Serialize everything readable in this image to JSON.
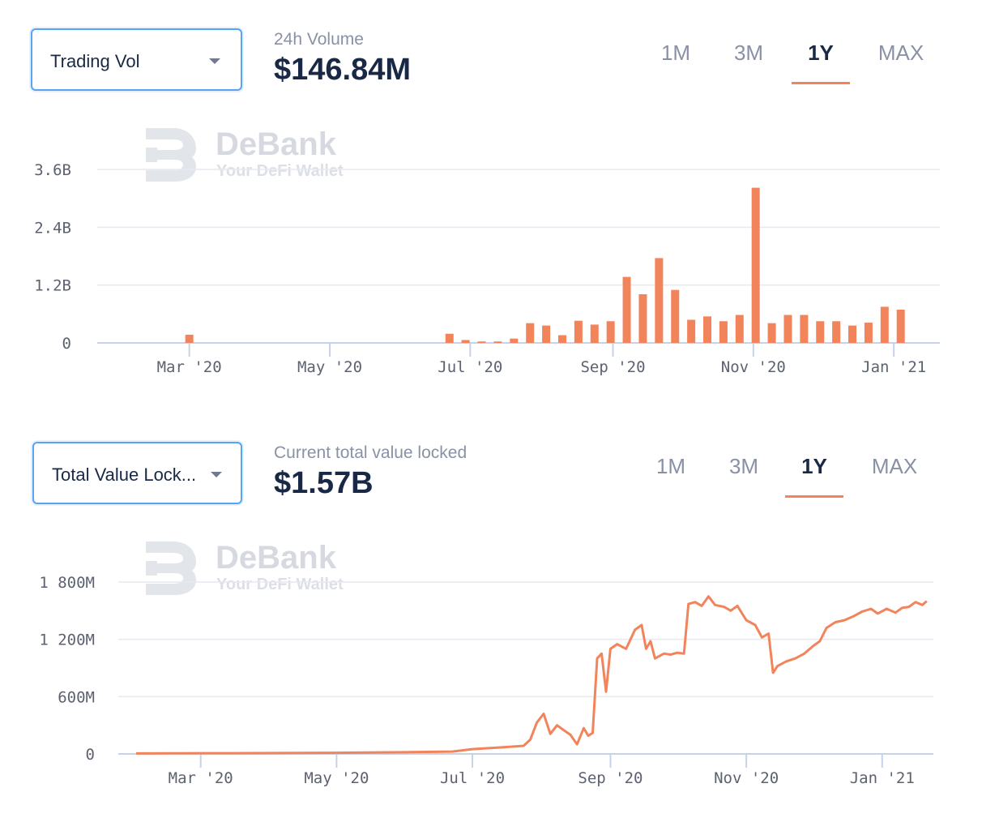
{
  "colors": {
    "accent": "#f2845c",
    "text": "#192945",
    "muted": "#8a91a4",
    "border": "#5aa3f0"
  },
  "watermark": {
    "name": "DeBank",
    "tagline": "Your DeFi Wallet"
  },
  "volume_panel": {
    "selector_label": "Trading Vol",
    "stat_label": "24h Volume",
    "stat_value": "$146.84M",
    "ranges": [
      "1M",
      "3M",
      "1Y",
      "MAX"
    ],
    "active_range": "1Y"
  },
  "tvl_panel": {
    "selector_label": "Total Value Lock...",
    "stat_label": "Current total value locked",
    "stat_value": "$1.57B",
    "ranges": [
      "1M",
      "3M",
      "1Y",
      "MAX"
    ],
    "active_range": "1Y"
  },
  "chart_data": [
    {
      "type": "bar",
      "title": "Trading Vol",
      "x_start": "2020-01-21",
      "x_end": "2021-01-21",
      "x_tick_labels": [
        "Mar '20",
        "May '20",
        "Jul '20",
        "Sep '20",
        "Nov '20",
        "Jan '21"
      ],
      "x_tick_dates": [
        "2020-03-01",
        "2020-05-01",
        "2020-07-01",
        "2020-09-01",
        "2020-11-01",
        "2021-01-01"
      ],
      "y_ticks": [
        0,
        1.2,
        2.4,
        3.6
      ],
      "y_tick_labels": [
        "0",
        "1.2B",
        "2.4B",
        "3.6B"
      ],
      "ylim": [
        0,
        3.6
      ],
      "unit": "B",
      "bars": [
        {
          "date": "2020-03-01",
          "value": 0.17
        },
        {
          "date": "2020-06-22",
          "value": 0.19
        },
        {
          "date": "2020-06-29",
          "value": 0.06
        },
        {
          "date": "2020-07-06",
          "value": 0.03
        },
        {
          "date": "2020-07-13",
          "value": 0.03
        },
        {
          "date": "2020-07-20",
          "value": 0.09
        },
        {
          "date": "2020-07-27",
          "value": 0.41
        },
        {
          "date": "2020-08-03",
          "value": 0.36
        },
        {
          "date": "2020-08-10",
          "value": 0.16
        },
        {
          "date": "2020-08-17",
          "value": 0.46
        },
        {
          "date": "2020-08-24",
          "value": 0.38
        },
        {
          "date": "2020-08-31",
          "value": 0.45
        },
        {
          "date": "2020-09-07",
          "value": 1.37
        },
        {
          "date": "2020-09-14",
          "value": 1.01
        },
        {
          "date": "2020-09-21",
          "value": 1.76
        },
        {
          "date": "2020-09-28",
          "value": 1.1
        },
        {
          "date": "2020-10-05",
          "value": 0.48
        },
        {
          "date": "2020-10-12",
          "value": 0.55
        },
        {
          "date": "2020-10-19",
          "value": 0.45
        },
        {
          "date": "2020-10-26",
          "value": 0.58
        },
        {
          "date": "2020-11-02",
          "value": 3.22
        },
        {
          "date": "2020-11-09",
          "value": 0.41
        },
        {
          "date": "2020-11-16",
          "value": 0.58
        },
        {
          "date": "2020-11-23",
          "value": 0.58
        },
        {
          "date": "2020-11-30",
          "value": 0.45
        },
        {
          "date": "2020-12-07",
          "value": 0.45
        },
        {
          "date": "2020-12-14",
          "value": 0.36
        },
        {
          "date": "2020-12-21",
          "value": 0.42
        },
        {
          "date": "2020-12-28",
          "value": 0.75
        },
        {
          "date": "2021-01-04",
          "value": 0.69
        }
      ]
    },
    {
      "type": "line",
      "title": "Total Value Locked",
      "x_start": "2020-01-24",
      "x_end": "2021-01-24",
      "x_tick_labels": [
        "Mar '20",
        "May '20",
        "Jul '20",
        "Sep '20",
        "Nov '20",
        "Jan '21"
      ],
      "x_tick_dates": [
        "2020-03-01",
        "2020-05-01",
        "2020-07-01",
        "2020-09-01",
        "2020-11-01",
        "2021-01-01"
      ],
      "y_ticks": [
        0,
        600,
        1200,
        1800
      ],
      "y_tick_labels": [
        "0",
        "600M",
        "1 200M",
        "1 800M"
      ],
      "ylim": [
        0,
        1800
      ],
      "unit": "M",
      "points": [
        [
          "2020-02-01",
          5
        ],
        [
          "2020-03-15",
          8
        ],
        [
          "2020-05-01",
          12
        ],
        [
          "2020-06-01",
          18
        ],
        [
          "2020-06-22",
          25
        ],
        [
          "2020-07-01",
          50
        ],
        [
          "2020-07-15",
          70
        ],
        [
          "2020-07-24",
          85
        ],
        [
          "2020-07-27",
          150
        ],
        [
          "2020-07-30",
          330
        ],
        [
          "2020-08-02",
          420
        ],
        [
          "2020-08-05",
          210
        ],
        [
          "2020-08-08",
          300
        ],
        [
          "2020-08-11",
          250
        ],
        [
          "2020-08-14",
          200
        ],
        [
          "2020-08-17",
          100
        ],
        [
          "2020-08-20",
          270
        ],
        [
          "2020-08-22",
          190
        ],
        [
          "2020-08-24",
          220
        ],
        [
          "2020-08-26",
          1000
        ],
        [
          "2020-08-28",
          1050
        ],
        [
          "2020-08-30",
          650
        ],
        [
          "2020-09-01",
          1100
        ],
        [
          "2020-09-04",
          1150
        ],
        [
          "2020-09-08",
          1100
        ],
        [
          "2020-09-12",
          1300
        ],
        [
          "2020-09-15",
          1350
        ],
        [
          "2020-09-17",
          1100
        ],
        [
          "2020-09-19",
          1180
        ],
        [
          "2020-09-21",
          1000
        ],
        [
          "2020-09-25",
          1050
        ],
        [
          "2020-09-28",
          1040
        ],
        [
          "2020-10-01",
          1060
        ],
        [
          "2020-10-04",
          1050
        ],
        [
          "2020-10-06",
          1570
        ],
        [
          "2020-10-09",
          1590
        ],
        [
          "2020-10-12",
          1550
        ],
        [
          "2020-10-15",
          1650
        ],
        [
          "2020-10-18",
          1560
        ],
        [
          "2020-10-22",
          1540
        ],
        [
          "2020-10-25",
          1500
        ],
        [
          "2020-10-28",
          1550
        ],
        [
          "2020-11-01",
          1400
        ],
        [
          "2020-11-05",
          1350
        ],
        [
          "2020-11-08",
          1220
        ],
        [
          "2020-11-11",
          1260
        ],
        [
          "2020-11-13",
          850
        ],
        [
          "2020-11-15",
          920
        ],
        [
          "2020-11-19",
          970
        ],
        [
          "2020-11-23",
          1000
        ],
        [
          "2020-11-27",
          1050
        ],
        [
          "2020-12-01",
          1130
        ],
        [
          "2020-12-04",
          1180
        ],
        [
          "2020-12-07",
          1320
        ],
        [
          "2020-12-11",
          1380
        ],
        [
          "2020-12-15",
          1400
        ],
        [
          "2020-12-19",
          1440
        ],
        [
          "2020-12-23",
          1490
        ],
        [
          "2020-12-27",
          1520
        ],
        [
          "2020-12-30",
          1470
        ],
        [
          "2021-01-03",
          1520
        ],
        [
          "2021-01-07",
          1480
        ],
        [
          "2021-01-10",
          1530
        ],
        [
          "2021-01-13",
          1540
        ],
        [
          "2021-01-16",
          1590
        ],
        [
          "2021-01-19",
          1560
        ],
        [
          "2021-01-21",
          1600
        ]
      ]
    }
  ]
}
